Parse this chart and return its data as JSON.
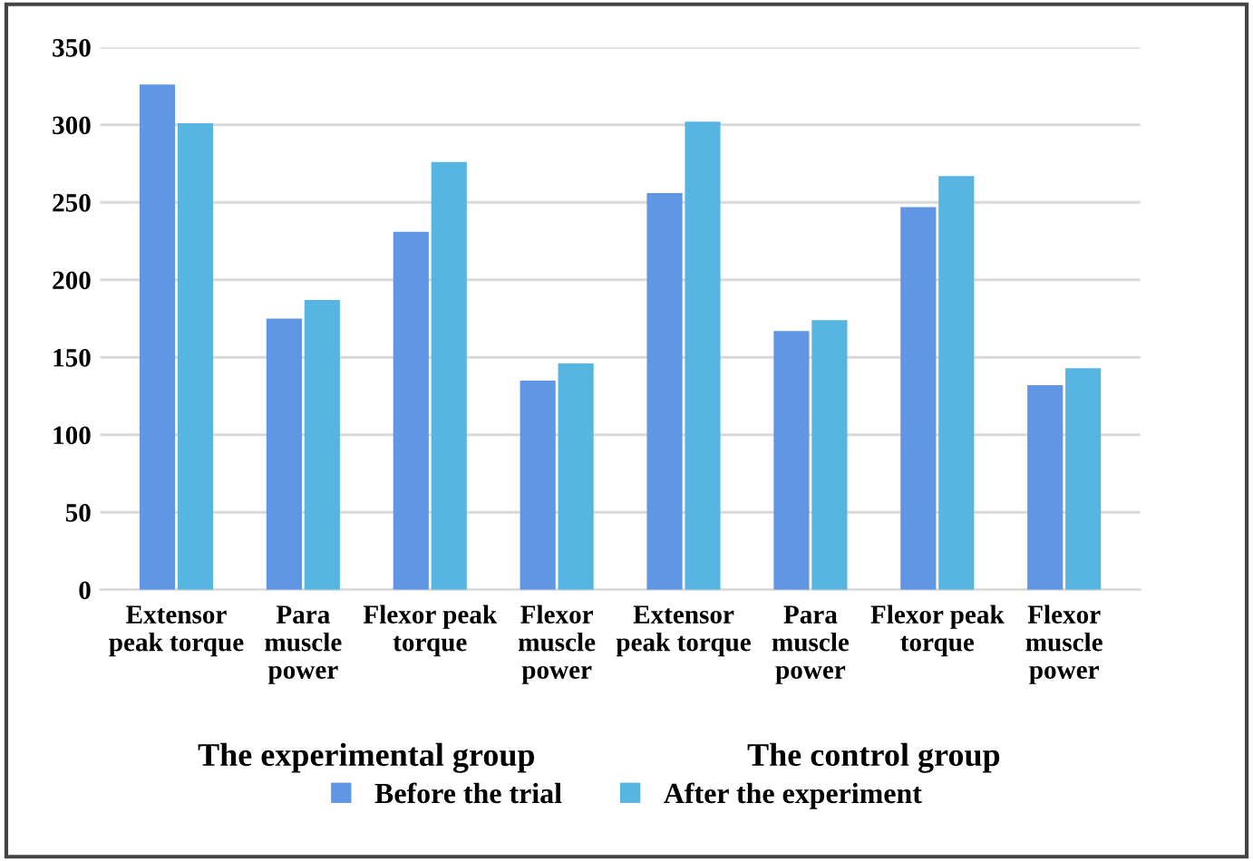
{
  "chart_data": {
    "type": "bar",
    "categories": [
      "Extensor\npeak torque",
      "Para\nmuscle\npower",
      "Flexor peak\ntorque",
      "Flexor\nmuscle\npower",
      "Extensor\npeak torque",
      "Para\nmuscle\npower",
      "Flexor peak\ntorque",
      "Flexor\nmuscle\npower"
    ],
    "series": [
      {
        "name": "Before the trial",
        "color": "#6096e4",
        "values": [
          326,
          175,
          231,
          135,
          256,
          167,
          247,
          132
        ]
      },
      {
        "name": "After the experiment",
        "color": "#57b5e2",
        "values": [
          301,
          187,
          276,
          146,
          302,
          174,
          267,
          143
        ]
      }
    ],
    "annotations": [
      "The experimental group",
      "The control group"
    ],
    "ylim": [
      0,
      350
    ],
    "yticks": [
      0,
      50,
      100,
      150,
      200,
      250,
      300,
      350
    ],
    "grid": "y",
    "legend": "bottom"
  }
}
